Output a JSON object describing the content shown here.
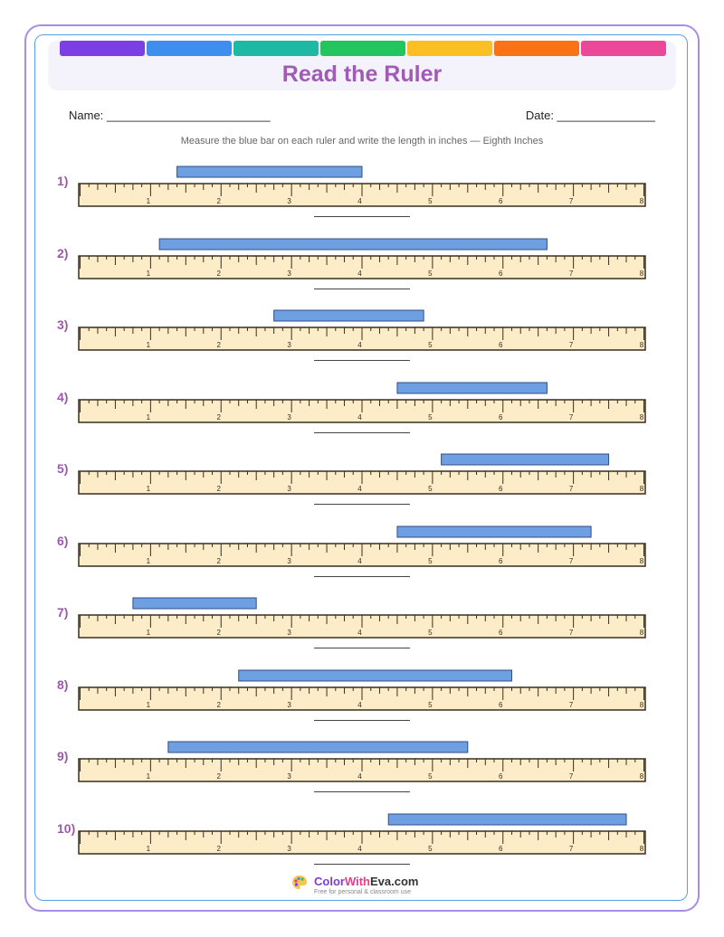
{
  "worksheet": {
    "title": "Read the Ruler",
    "name_label": "Name: _________________________",
    "date_label": "Date: _______________",
    "instructions": "Measure the blue bar on each ruler and write the length in inches — Eighth Inches"
  },
  "ruler": {
    "max_inches": 8,
    "tick_labels": [
      "1",
      "2",
      "3",
      "4",
      "5",
      "6",
      "7",
      "8"
    ],
    "fill_color": "#fcedc8",
    "bar_color": "#6f9fe3"
  },
  "problems": [
    {
      "number": "1)",
      "bar_start_in": 1.375,
      "bar_end_in": 4.0
    },
    {
      "number": "2)",
      "bar_start_in": 1.125,
      "bar_end_in": 6.625
    },
    {
      "number": "3)",
      "bar_start_in": 2.75,
      "bar_end_in": 4.875
    },
    {
      "number": "4)",
      "bar_start_in": 4.5,
      "bar_end_in": 6.625
    },
    {
      "number": "5)",
      "bar_start_in": 5.125,
      "bar_end_in": 7.5
    },
    {
      "number": "6)",
      "bar_start_in": 4.5,
      "bar_end_in": 7.25
    },
    {
      "number": "7)",
      "bar_start_in": 0.75,
      "bar_end_in": 2.5
    },
    {
      "number": "8)",
      "bar_start_in": 2.25,
      "bar_end_in": 6.125
    },
    {
      "number": "9)",
      "bar_start_in": 1.25,
      "bar_end_in": 5.5
    },
    {
      "number": "10)",
      "bar_start_in": 4.375,
      "bar_end_in": 7.75
    }
  ],
  "header": {
    "rainbow_colors": [
      "#7c3fe4",
      "#3e8ef0",
      "#1db9a5",
      "#22c55e",
      "#fbbf24",
      "#f97316",
      "#ec4899"
    ]
  },
  "footer": {
    "brand_part1": "Color",
    "brand_part2": "With",
    "brand_part3": "Eva.com",
    "tagline": "Free for personal & classroom use",
    "logo_icon": "palette-icon"
  }
}
